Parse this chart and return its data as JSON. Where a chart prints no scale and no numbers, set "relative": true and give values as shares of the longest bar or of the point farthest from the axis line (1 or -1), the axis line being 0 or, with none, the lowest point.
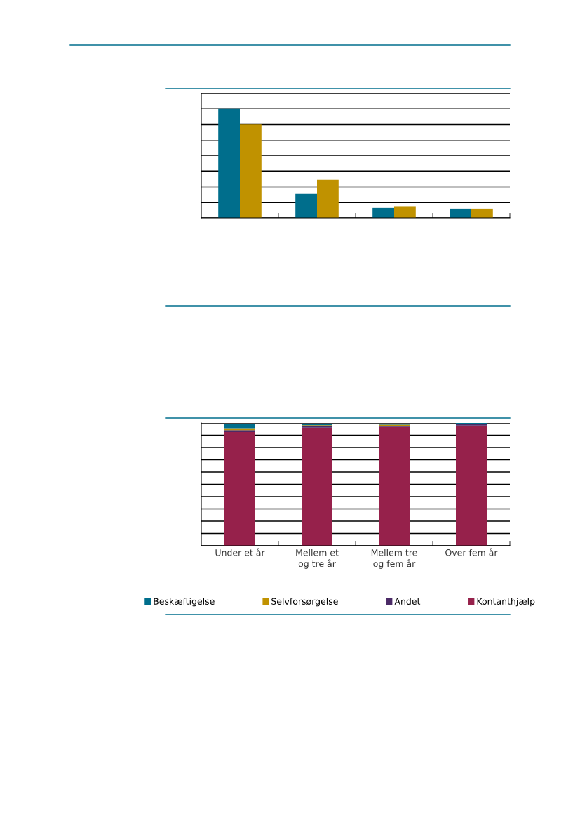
{
  "chart_data": [
    {
      "type": "bar",
      "relative": true,
      "grid": "y",
      "tick_labels": false,
      "legend": false,
      "categories": [
        null,
        null,
        null,
        null
      ],
      "series": [
        {
          "color": "#006e8c",
          "values": [
            1,
            0.225,
            0.097,
            0.084
          ]
        },
        {
          "color": "#c09200",
          "values": [
            0.857,
            0.354,
            0.106,
            0.084
          ]
        }
      ]
    },
    {
      "type": "bar",
      "relative": true,
      "stacked": true,
      "grid": "y",
      "tick_labels": "x",
      "legend": "bottom",
      "categories": [
        "Under et år",
        "Mellem et\nog tre år",
        "Mellem tre\nog fem år",
        "Over fem år"
      ],
      "series": [
        {
          "name": "Kontanthjælp",
          "color": "#96214b",
          "values": [
            0.925,
            0.962,
            0.967,
            0.978
          ]
        },
        {
          "name": "Andet",
          "color": "#4b2a66",
          "values": [
            0.017,
            0.011,
            0.009,
            0.011
          ]
        },
        {
          "name": "Selvforsørgelse",
          "color": "#c09200",
          "values": [
            0.015,
            0.009,
            0.009,
            0
          ]
        },
        {
          "name": "Beskæftigelse",
          "color": "#006e8c",
          "values": [
            0.034,
            0.008,
            0.004,
            0.011
          ]
        }
      ]
    }
  ]
}
